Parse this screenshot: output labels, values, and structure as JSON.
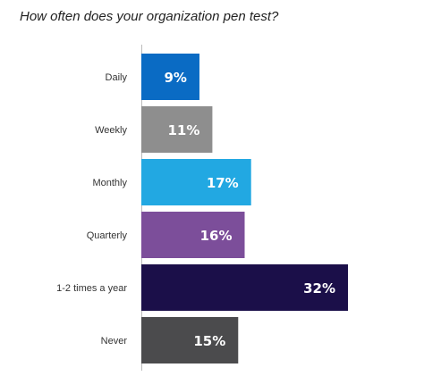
{
  "chart_data": {
    "type": "bar",
    "orientation": "horizontal",
    "title": "How often does your organization pen test?",
    "categories": [
      "Daily",
      "Weekly",
      "Monthly",
      "Quarterly",
      "1-2 times a year",
      "Never"
    ],
    "values": [
      9,
      11,
      17,
      16,
      32,
      15
    ],
    "value_labels": [
      "9%",
      "11%",
      "17%",
      "16%",
      "32%",
      "15%"
    ],
    "colors": [
      "#0a6bc4",
      "#8e8e8e",
      "#22a8e2",
      "#7c4e9a",
      "#1b0f49",
      "#4b4b4d"
    ],
    "xlim": [
      0,
      32
    ],
    "grid": false,
    "legend": "none"
  }
}
